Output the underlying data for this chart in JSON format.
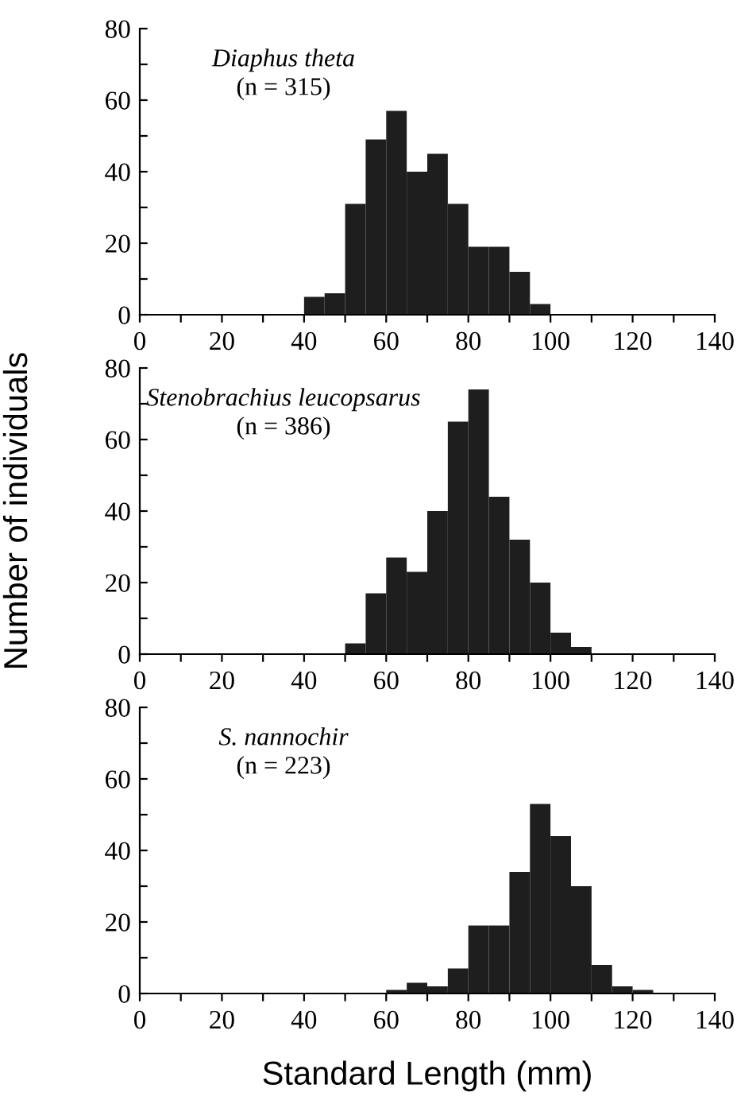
{
  "chart_data": [
    {
      "type": "histogram",
      "annotations": [
        "Diaphus theta",
        "(n = 315)"
      ],
      "color": "#1e1e1e",
      "bins": [
        40,
        45,
        50,
        55,
        60,
        65,
        70,
        75,
        80,
        85,
        90,
        95,
        100
      ],
      "values": [
        5,
        6,
        31,
        49,
        57,
        40,
        45,
        31,
        19,
        19,
        12,
        3
      ],
      "xlim": [
        0,
        140
      ],
      "xticks": [
        0,
        {
          "value": 10,
          "label": null
        },
        20,
        {
          "value": 30,
          "label": null
        },
        40,
        {
          "value": 50,
          "label": null
        },
        60,
        {
          "value": 70,
          "label": null
        },
        80,
        {
          "value": 90,
          "label": null
        },
        100,
        {
          "value": 110,
          "label": null
        },
        120,
        {
          "value": 130,
          "label": null
        },
        140
      ],
      "ylim": [
        0,
        80
      ],
      "yticks": [
        0,
        {
          "value": 10,
          "label": null
        },
        20,
        {
          "value": 30,
          "label": null
        },
        40,
        {
          "value": 50,
          "label": null
        },
        60,
        {
          "value": 70,
          "label": null
        },
        80
      ],
      "grid": false
    },
    {
      "type": "histogram",
      "ylabel": "Number of individuals",
      "annotations": [
        "Stenobrachius leucopsarus",
        "(n = 386)"
      ],
      "color": "#1e1e1e",
      "bins": [
        50,
        55,
        60,
        65,
        70,
        75,
        80,
        85,
        90,
        95,
        100,
        105,
        110
      ],
      "values": [
        3,
        17,
        27,
        23,
        40,
        65,
        74,
        44,
        32,
        20,
        6,
        2
      ],
      "xlim": [
        0,
        140
      ],
      "xticks": [
        0,
        {
          "value": 10,
          "label": null
        },
        20,
        {
          "value": 30,
          "label": null
        },
        40,
        {
          "value": 50,
          "label": null
        },
        60,
        {
          "value": 70,
          "label": null
        },
        80,
        {
          "value": 90,
          "label": null
        },
        100,
        {
          "value": 110,
          "label": null
        },
        120,
        {
          "value": 130,
          "label": null
        },
        140
      ],
      "ylim": [
        0,
        80
      ],
      "yticks": [
        0,
        {
          "value": 10,
          "label": null
        },
        20,
        {
          "value": 30,
          "label": null
        },
        40,
        {
          "value": 50,
          "label": null
        },
        60,
        {
          "value": 70,
          "label": null
        },
        80
      ],
      "grid": false
    },
    {
      "type": "histogram",
      "xlabel": "Standard Length (mm)",
      "annotations": [
        "S. nannochir",
        "(n = 223)"
      ],
      "color": "#1e1e1e",
      "bins": [
        60,
        65,
        70,
        75,
        80,
        85,
        90,
        95,
        100,
        105,
        110,
        115,
        120,
        125
      ],
      "values": [
        1,
        3,
        2,
        7,
        19,
        19,
        34,
        53,
        44,
        30,
        8,
        2,
        1
      ],
      "xlim": [
        0,
        140
      ],
      "xticks": [
        0,
        {
          "value": 10,
          "label": null
        },
        20,
        {
          "value": 30,
          "label": null
        },
        40,
        {
          "value": 50,
          "label": null
        },
        60,
        {
          "value": 70,
          "label": null
        },
        80,
        {
          "value": 90,
          "label": null
        },
        100,
        {
          "value": 110,
          "label": null
        },
        120,
        {
          "value": 130,
          "label": null
        },
        140
      ],
      "ylim": [
        0,
        80
      ],
      "yticks": [
        0,
        {
          "value": 10,
          "label": null
        },
        20,
        {
          "value": 30,
          "label": null
        },
        40,
        {
          "value": 50,
          "label": null
        },
        60,
        {
          "value": 70,
          "label": null
        },
        80
      ],
      "grid": false
    }
  ]
}
